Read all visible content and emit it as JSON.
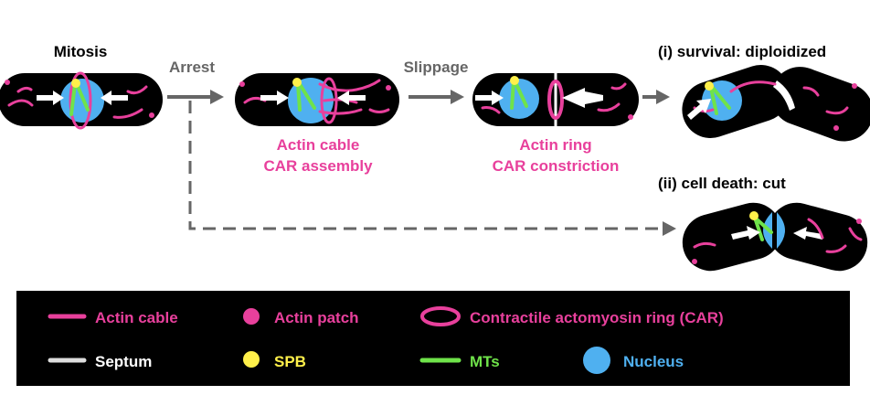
{
  "stages": [
    {
      "label": "Mitosis"
    },
    {
      "label": "Arrest"
    },
    {
      "label": "Slippage"
    },
    {
      "label": "(i) survival: diploidized"
    },
    {
      "label": "(ii) cell death: cut"
    }
  ],
  "annotations": [
    {
      "lines": [
        "Actin cable",
        "CAR assembly"
      ]
    },
    {
      "lines": [
        "Actin ring",
        "CAR constriction"
      ]
    }
  ],
  "legend": [
    {
      "label": "Actin cable"
    },
    {
      "label": "Actin patch"
    },
    {
      "label": "Contractile actomyosin ring (CAR)"
    },
    {
      "label": "Septum"
    },
    {
      "label": "SPB"
    },
    {
      "label": "MTs"
    },
    {
      "label": "Nucleus"
    }
  ]
}
